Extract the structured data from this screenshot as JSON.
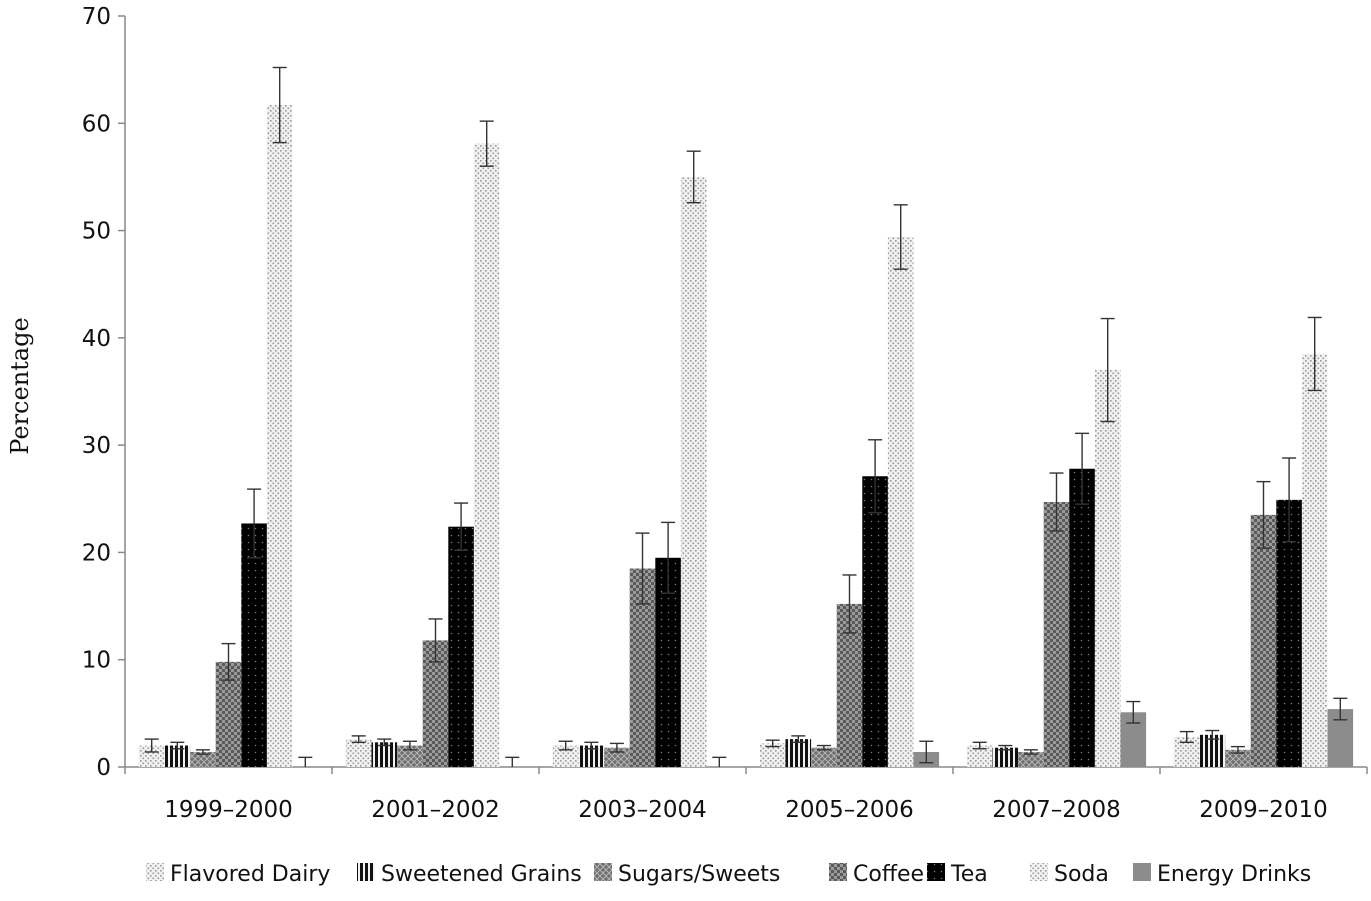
{
  "chart_data": {
    "type": "bar",
    "ylabel": "Percentage",
    "ylim": [
      0,
      70
    ],
    "yticks": [
      0,
      10,
      20,
      30,
      40,
      50,
      60,
      70
    ],
    "categories": [
      "1999–2000",
      "2001–2002",
      "2003–2004",
      "2005–2006",
      "2007–2008",
      "2009–2010"
    ],
    "legend_position": "bottom",
    "grid": false,
    "series": [
      {
        "name": "Flavored Dairy",
        "pattern": "dots-light",
        "color": "#e6e6e6",
        "values": [
          2.0,
          2.6,
          2.0,
          2.2,
          2.0,
          2.8
        ],
        "err": [
          0.6,
          0.3,
          0.4,
          0.3,
          0.3,
          0.5
        ]
      },
      {
        "name": "Sweetened Grains",
        "pattern": "vstripes",
        "color": "#1a1a1a",
        "values": [
          2.0,
          2.3,
          2.0,
          2.6,
          1.8,
          3.0
        ],
        "err": [
          0.3,
          0.3,
          0.3,
          0.3,
          0.2,
          0.4
        ]
      },
      {
        "name": "Sugars/Sweets",
        "pattern": "crosshatch",
        "color": "#8a8a8a",
        "values": [
          1.4,
          2.0,
          1.8,
          1.8,
          1.4,
          1.6
        ],
        "err": [
          0.2,
          0.4,
          0.4,
          0.2,
          0.2,
          0.3
        ]
      },
      {
        "name": "Coffee",
        "pattern": "checker-dark",
        "color": "#7a7a7a",
        "values": [
          9.8,
          11.8,
          18.5,
          15.2,
          24.7,
          23.5
        ],
        "err": [
          1.7,
          2.0,
          3.3,
          2.7,
          2.7,
          3.1
        ]
      },
      {
        "name": "Tea",
        "pattern": "black-dots",
        "color": "#000000",
        "values": [
          22.7,
          22.4,
          19.5,
          27.1,
          27.8,
          24.9
        ],
        "err": [
          3.2,
          2.2,
          3.3,
          3.4,
          3.3,
          3.9
        ]
      },
      {
        "name": "Soda",
        "pattern": "dots-light",
        "color": "#d9d9d9",
        "values": [
          61.7,
          58.1,
          55.0,
          49.4,
          37.0,
          38.5
        ],
        "err": [
          3.5,
          2.1,
          2.4,
          3.0,
          4.8,
          3.4
        ]
      },
      {
        "name": "Energy Drinks",
        "pattern": "solid-gray",
        "color": "#8c8c8c",
        "values": [
          0,
          0,
          0,
          1.4,
          5.1,
          5.4
        ],
        "err": [
          0.9,
          0.9,
          0.9,
          1.0,
          1.0,
          1.0
        ]
      }
    ]
  }
}
